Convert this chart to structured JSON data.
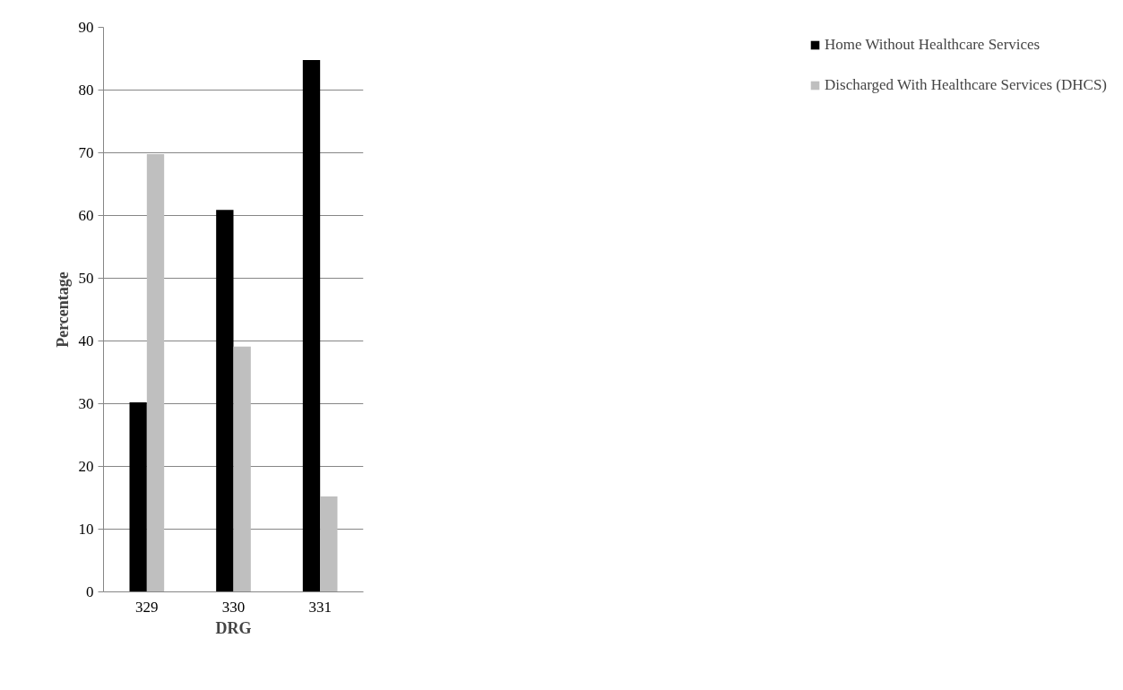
{
  "chart_data": {
    "type": "bar",
    "xlabel": "DRG",
    "ylabel": "Percentage",
    "categories": [
      "329",
      "330",
      "331"
    ],
    "series": [
      {
        "name": "Home Without Healthcare Services",
        "color": "#000000",
        "values": [
          30.2,
          60.9,
          84.8
        ]
      },
      {
        "name": "Discharged With Healthcare Services (DHCS)",
        "color": "#bfbfbf",
        "values": [
          69.8,
          39.1,
          15.2
        ]
      }
    ],
    "ylim": [
      0,
      90
    ],
    "yticks": [
      0,
      10,
      20,
      30,
      40,
      50,
      60,
      70,
      80,
      90
    ],
    "grid": "y",
    "legend": "right"
  }
}
